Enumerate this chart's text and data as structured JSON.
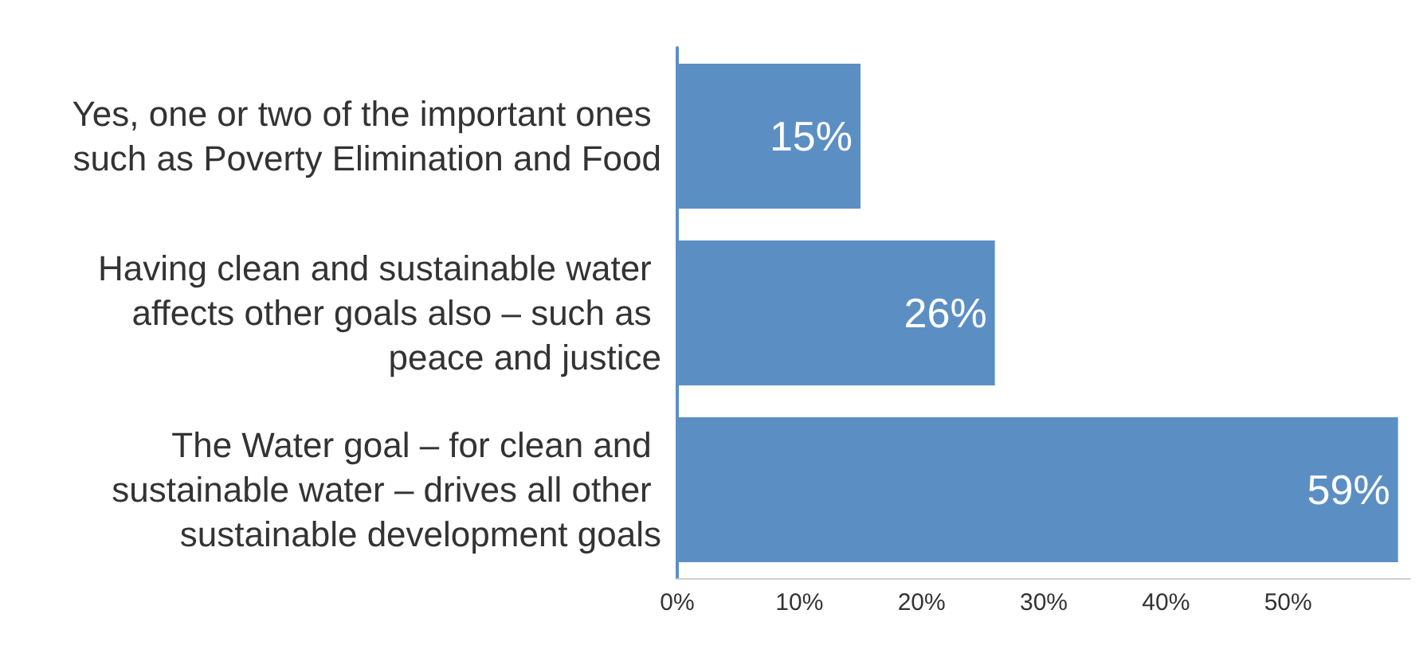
{
  "chart_data": {
    "type": "bar",
    "orientation": "horizontal",
    "categories": [
      "Yes, one or two of the important ones such as Poverty Elimination and Food",
      "Having clean and sustainable water affects other goals also – such as peace and justice",
      "The Water goal – for clean and sustainable water – drives all other sustainable development goals"
    ],
    "values": [
      15,
      26,
      59
    ],
    "value_labels": [
      "15%",
      "26%",
      "59%"
    ],
    "color": "#5b8fc4",
    "xlim": [
      0,
      60
    ],
    "xticks": [
      {
        "value": 0,
        "label": "0%"
      },
      {
        "value": 10,
        "label": "10%"
      },
      {
        "value": 20,
        "label": "20%"
      },
      {
        "value": 30,
        "label": "30%"
      },
      {
        "value": 40,
        "label": "40%"
      },
      {
        "value": 50,
        "label": "50%"
      }
    ],
    "grid": false
  }
}
